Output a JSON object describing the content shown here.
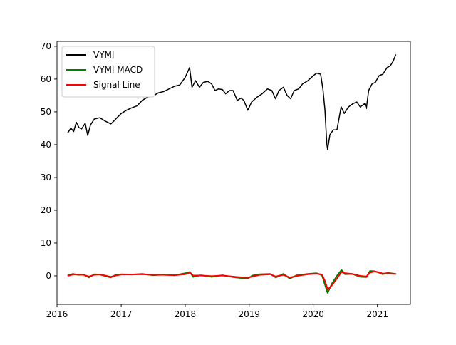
{
  "chart_data": {
    "type": "line",
    "title": "",
    "xlabel": "",
    "ylabel": "",
    "x_axis": {
      "range": [
        "2016-01-01",
        "2021-07-08"
      ],
      "ticks": [
        {
          "value": "2016-01-01",
          "label": "2016"
        },
        {
          "value": "2017-01-01",
          "label": "2017"
        },
        {
          "value": "2018-01-01",
          "label": "2018"
        },
        {
          "value": "2019-01-01",
          "label": "2019"
        },
        {
          "value": "2020-01-01",
          "label": "2020"
        },
        {
          "value": "2021-01-01",
          "label": "2021"
        }
      ]
    },
    "y_axis": {
      "range": [
        -8.7,
        71.5
      ],
      "ticks": [
        0,
        10,
        20,
        30,
        40,
        50,
        60,
        70
      ]
    },
    "grid": false,
    "legend": {
      "placement": "top-left"
    },
    "series": [
      {
        "name": "VYMI",
        "color": "#000000",
        "points": [
          [
            "2016-03-01",
            43.5
          ],
          [
            "2016-03-20",
            45.0
          ],
          [
            "2016-04-05",
            44.0
          ],
          [
            "2016-04-20",
            46.8
          ],
          [
            "2016-05-05",
            45.2
          ],
          [
            "2016-05-20",
            44.8
          ],
          [
            "2016-06-10",
            46.5
          ],
          [
            "2016-06-24",
            42.8
          ],
          [
            "2016-07-10",
            46.0
          ],
          [
            "2016-08-01",
            47.8
          ],
          [
            "2016-09-01",
            48.2
          ],
          [
            "2016-10-01",
            47.2
          ],
          [
            "2016-11-04",
            46.3
          ],
          [
            "2016-12-01",
            47.8
          ],
          [
            "2017-01-01",
            49.5
          ],
          [
            "2017-02-01",
            50.5
          ],
          [
            "2017-03-01",
            51.2
          ],
          [
            "2017-04-01",
            51.8
          ],
          [
            "2017-05-01",
            53.5
          ],
          [
            "2017-06-01",
            54.5
          ],
          [
            "2017-07-01",
            54.8
          ],
          [
            "2017-08-01",
            55.8
          ],
          [
            "2017-09-01",
            56.2
          ],
          [
            "2017-10-01",
            57.0
          ],
          [
            "2017-11-01",
            57.8
          ],
          [
            "2017-12-01",
            58.2
          ],
          [
            "2018-01-01",
            60.5
          ],
          [
            "2018-01-26",
            63.5
          ],
          [
            "2018-02-09",
            57.5
          ],
          [
            "2018-03-01",
            59.5
          ],
          [
            "2018-03-23",
            57.5
          ],
          [
            "2018-04-15",
            59.0
          ],
          [
            "2018-05-10",
            59.3
          ],
          [
            "2018-06-01",
            58.5
          ],
          [
            "2018-06-20",
            56.5
          ],
          [
            "2018-07-10",
            57.0
          ],
          [
            "2018-08-01",
            56.8
          ],
          [
            "2018-08-20",
            55.5
          ],
          [
            "2018-09-10",
            56.5
          ],
          [
            "2018-10-01",
            56.5
          ],
          [
            "2018-10-25",
            53.5
          ],
          [
            "2018-11-15",
            54.2
          ],
          [
            "2018-12-01",
            53.5
          ],
          [
            "2018-12-24",
            50.5
          ],
          [
            "2019-01-15",
            53.0
          ],
          [
            "2019-02-15",
            54.5
          ],
          [
            "2019-03-15",
            55.5
          ],
          [
            "2019-04-15",
            57.0
          ],
          [
            "2019-05-10",
            56.5
          ],
          [
            "2019-05-31",
            54.0
          ],
          [
            "2019-06-20",
            56.5
          ],
          [
            "2019-07-15",
            57.5
          ],
          [
            "2019-08-05",
            55.0
          ],
          [
            "2019-08-25",
            54.0
          ],
          [
            "2019-09-15",
            56.5
          ],
          [
            "2019-10-10",
            57.0
          ],
          [
            "2019-11-01",
            58.5
          ],
          [
            "2019-12-01",
            59.5
          ],
          [
            "2020-01-01",
            61.0
          ],
          [
            "2020-01-20",
            61.8
          ],
          [
            "2020-02-12",
            61.5
          ],
          [
            "2020-02-25",
            57.0
          ],
          [
            "2020-03-08",
            50.5
          ],
          [
            "2020-03-18",
            40.5
          ],
          [
            "2020-03-23",
            38.5
          ],
          [
            "2020-04-05",
            43.0
          ],
          [
            "2020-04-25",
            44.5
          ],
          [
            "2020-05-15",
            44.5
          ],
          [
            "2020-06-08",
            51.5
          ],
          [
            "2020-06-26",
            49.5
          ],
          [
            "2020-07-20",
            51.5
          ],
          [
            "2020-08-15",
            52.5
          ],
          [
            "2020-09-05",
            53.0
          ],
          [
            "2020-09-25",
            51.5
          ],
          [
            "2020-10-20",
            52.5
          ],
          [
            "2020-10-30",
            51.0
          ],
          [
            "2020-11-12",
            56.5
          ],
          [
            "2020-12-01",
            58.5
          ],
          [
            "2020-12-20",
            59.0
          ],
          [
            "2021-01-10",
            61.0
          ],
          [
            "2021-02-01",
            61.5
          ],
          [
            "2021-02-25",
            63.5
          ],
          [
            "2021-03-15",
            64.0
          ],
          [
            "2021-04-01",
            65.5
          ],
          [
            "2021-04-16",
            67.5
          ]
        ]
      },
      {
        "name": "VYMI MACD",
        "color": "#008000",
        "points": [
          [
            "2016-03-01",
            0.1
          ],
          [
            "2016-04-01",
            0.6
          ],
          [
            "2016-05-01",
            0.3
          ],
          [
            "2016-06-01",
            0.4
          ],
          [
            "2016-07-01",
            -0.5
          ],
          [
            "2016-08-01",
            0.5
          ],
          [
            "2016-09-01",
            0.4
          ],
          [
            "2016-10-01",
            0.0
          ],
          [
            "2016-11-01",
            -0.5
          ],
          [
            "2016-12-01",
            0.3
          ],
          [
            "2017-01-01",
            0.5
          ],
          [
            "2017-03-01",
            0.4
          ],
          [
            "2017-05-01",
            0.6
          ],
          [
            "2017-07-01",
            0.2
          ],
          [
            "2017-09-01",
            0.4
          ],
          [
            "2017-11-01",
            0.2
          ],
          [
            "2018-01-01",
            0.8
          ],
          [
            "2018-01-28",
            1.2
          ],
          [
            "2018-02-15",
            -0.3
          ],
          [
            "2018-04-01",
            0.2
          ],
          [
            "2018-06-01",
            -0.3
          ],
          [
            "2018-08-01",
            0.2
          ],
          [
            "2018-10-15",
            -0.5
          ],
          [
            "2018-12-24",
            -0.8
          ],
          [
            "2019-01-20",
            0.1
          ],
          [
            "2019-03-01",
            0.5
          ],
          [
            "2019-05-01",
            0.6
          ],
          [
            "2019-06-01",
            -0.5
          ],
          [
            "2019-07-15",
            0.6
          ],
          [
            "2019-08-20",
            -0.8
          ],
          [
            "2019-10-01",
            0.2
          ],
          [
            "2019-12-01",
            0.6
          ],
          [
            "2020-01-20",
            0.8
          ],
          [
            "2020-02-20",
            0.2
          ],
          [
            "2020-03-10",
            -3.0
          ],
          [
            "2020-03-23",
            -5.2
          ],
          [
            "2020-04-15",
            -2.5
          ],
          [
            "2020-05-15",
            0.0
          ],
          [
            "2020-06-10",
            1.8
          ],
          [
            "2020-07-01",
            0.5
          ],
          [
            "2020-08-10",
            0.6
          ],
          [
            "2020-09-25",
            -0.3
          ],
          [
            "2020-10-30",
            -0.4
          ],
          [
            "2020-11-20",
            1.5
          ],
          [
            "2020-12-15",
            1.4
          ],
          [
            "2021-01-10",
            1.0
          ],
          [
            "2021-01-31",
            0.5
          ],
          [
            "2021-03-01",
            0.9
          ],
          [
            "2021-04-16",
            0.6
          ]
        ]
      },
      {
        "name": "Signal Line",
        "color": "#ff0000",
        "points": [
          [
            "2016-03-01",
            0.0
          ],
          [
            "2016-04-01",
            0.4
          ],
          [
            "2016-05-01",
            0.4
          ],
          [
            "2016-06-01",
            0.3
          ],
          [
            "2016-07-01",
            -0.2
          ],
          [
            "2016-08-01",
            0.3
          ],
          [
            "2016-09-01",
            0.4
          ],
          [
            "2016-10-01",
            0.1
          ],
          [
            "2016-11-01",
            -0.3
          ],
          [
            "2016-12-01",
            0.1
          ],
          [
            "2017-01-01",
            0.4
          ],
          [
            "2017-03-01",
            0.4
          ],
          [
            "2017-05-01",
            0.5
          ],
          [
            "2017-07-01",
            0.3
          ],
          [
            "2017-09-01",
            0.3
          ],
          [
            "2017-11-01",
            0.2
          ],
          [
            "2018-01-01",
            0.5
          ],
          [
            "2018-01-28",
            1.0
          ],
          [
            "2018-02-15",
            0.1
          ],
          [
            "2018-04-01",
            0.1
          ],
          [
            "2018-06-01",
            -0.1
          ],
          [
            "2018-08-01",
            0.1
          ],
          [
            "2018-10-15",
            -0.3
          ],
          [
            "2018-12-24",
            -0.6
          ],
          [
            "2019-01-20",
            -0.2
          ],
          [
            "2019-03-01",
            0.3
          ],
          [
            "2019-05-01",
            0.5
          ],
          [
            "2019-06-01",
            -0.2
          ],
          [
            "2019-07-15",
            0.3
          ],
          [
            "2019-08-20",
            -0.5
          ],
          [
            "2019-10-01",
            0.0
          ],
          [
            "2019-12-01",
            0.5
          ],
          [
            "2020-01-20",
            0.7
          ],
          [
            "2020-02-20",
            0.4
          ],
          [
            "2020-03-10",
            -1.8
          ],
          [
            "2020-03-23",
            -4.2
          ],
          [
            "2020-04-15",
            -3.0
          ],
          [
            "2020-05-15",
            -0.8
          ],
          [
            "2020-06-10",
            1.2
          ],
          [
            "2020-07-01",
            0.8
          ],
          [
            "2020-08-10",
            0.6
          ],
          [
            "2020-09-25",
            0.0
          ],
          [
            "2020-10-30",
            -0.2
          ],
          [
            "2020-11-20",
            1.0
          ],
          [
            "2020-12-15",
            1.3
          ],
          [
            "2021-01-10",
            1.1
          ],
          [
            "2021-01-31",
            0.7
          ],
          [
            "2021-03-01",
            0.8
          ],
          [
            "2021-04-16",
            0.6
          ]
        ]
      }
    ]
  }
}
